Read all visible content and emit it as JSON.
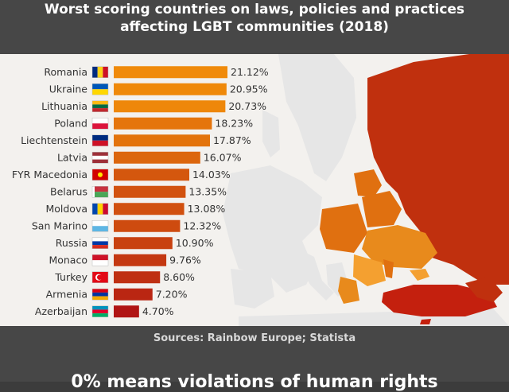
{
  "header": {
    "title_line1": "Worst scoring countries on laws, policies and practices",
    "title_line2": "affecting LGBT communities (2018)"
  },
  "footer": {
    "sources": "Sources:  Rainbow Europe; Statista",
    "caption": "0% means violations of human rights"
  },
  "colors": {
    "bar_high": "#f08a0a",
    "bar_low": "#b01414",
    "map_russia": "#c0300e",
    "map_turkey": "#c4200e",
    "map_orange": "#e07010",
    "map_light": "#f4a030",
    "map_other": "#e6e6e6"
  },
  "chart_data": {
    "type": "bar",
    "orientation": "horizontal",
    "title": "Worst scoring countries on laws, policies and practices affecting LGBT communities (2018)",
    "categories": [
      "Romania",
      "Ukraine",
      "Lithuania",
      "Poland",
      "Liechtenstein",
      "Latvia",
      "FYR Macedonia",
      "Belarus",
      "Moldova",
      "San Marino",
      "Russia",
      "Monaco",
      "Turkey",
      "Armenia",
      "Azerbaijan"
    ],
    "values": [
      21.12,
      20.95,
      20.73,
      18.23,
      17.87,
      16.07,
      14.03,
      13.35,
      13.08,
      12.32,
      10.9,
      9.76,
      8.6,
      7.2,
      4.7
    ],
    "value_labels": [
      "21.12%",
      "20.95%",
      "20.73%",
      "18.23%",
      "17.87%",
      "16.07%",
      "14.03%",
      "13.35%",
      "13.08%",
      "12.32%",
      "10.90%",
      "9.76%",
      "8.60%",
      "7.20%",
      "4.70%"
    ],
    "xlim": [
      0,
      21.12
    ],
    "unit": "%",
    "flags": [
      "flag-romania",
      "flag-ukraine",
      "flag-lithuania",
      "flag-poland",
      "flag-liechtenstein",
      "flag-latvia",
      "flag-macedonia",
      "flag-belarus",
      "flag-moldova",
      "flag-san-marino",
      "flag-russia",
      "flag-monaco",
      "flag-turkey",
      "flag-armenia",
      "flag-azerbaijan"
    ]
  }
}
